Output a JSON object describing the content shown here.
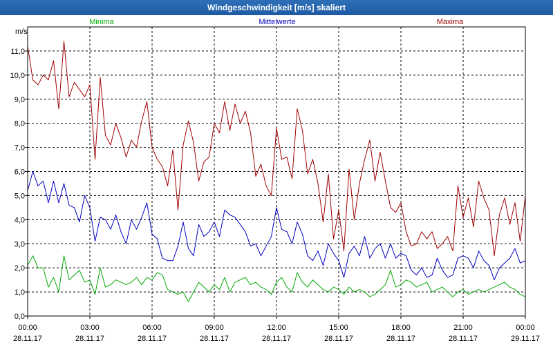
{
  "window": {
    "title": "Windgeschwindigkeit [m/s] skaliert"
  },
  "chart_data": {
    "type": "line",
    "title": "Windgeschwindigkeit [m/s] skaliert",
    "ylabel": "m/s",
    "ylim": [
      0,
      12
    ],
    "grid": true,
    "yticks": [
      {
        "value": 0,
        "label": "0,0"
      },
      {
        "value": 1,
        "label": "1,0"
      },
      {
        "value": 2,
        "label": "2,0"
      },
      {
        "value": 3,
        "label": "3,0"
      },
      {
        "value": 4,
        "label": "4,0"
      },
      {
        "value": 5,
        "label": "5,0"
      },
      {
        "value": 6,
        "label": "6,0"
      },
      {
        "value": 7,
        "label": "7,0"
      },
      {
        "value": 8,
        "label": "8,0"
      },
      {
        "value": 9,
        "label": "9,0"
      },
      {
        "value": 10,
        "label": "10,0"
      },
      {
        "value": 11,
        "label": "11,0"
      }
    ],
    "xticks": [
      {
        "time": "00:00",
        "date": "28.11.17"
      },
      {
        "time": "03:00",
        "date": "28.11.17"
      },
      {
        "time": "06:00",
        "date": "28.11.17"
      },
      {
        "time": "09:00",
        "date": "28.11.17"
      },
      {
        "time": "12:00",
        "date": "28.11.17"
      },
      {
        "time": "15:00",
        "date": "28.11.17"
      },
      {
        "time": "18:00",
        "date": "28.11.17"
      },
      {
        "time": "21:00",
        "date": "28.11.17"
      },
      {
        "time": "00:00",
        "date": "29.11.17"
      }
    ],
    "x_hours": [
      0.0,
      0.25,
      0.5,
      0.75,
      1.0,
      1.25,
      1.5,
      1.75,
      2.0,
      2.25,
      2.5,
      2.75,
      3.0,
      3.25,
      3.5,
      3.75,
      4.0,
      4.25,
      4.5,
      4.75,
      5.0,
      5.25,
      5.5,
      5.75,
      6.0,
      6.25,
      6.5,
      6.75,
      7.0,
      7.25,
      7.5,
      7.75,
      8.0,
      8.25,
      8.5,
      8.75,
      9.0,
      9.25,
      9.5,
      9.75,
      10.0,
      10.25,
      10.5,
      10.75,
      11.0,
      11.25,
      11.5,
      11.75,
      12.0,
      12.25,
      12.5,
      12.75,
      13.0,
      13.25,
      13.5,
      13.75,
      14.0,
      14.25,
      14.5,
      14.75,
      15.0,
      15.25,
      15.5,
      15.75,
      16.0,
      16.25,
      16.5,
      16.75,
      17.0,
      17.25,
      17.5,
      17.75,
      18.0,
      18.25,
      18.5,
      18.75,
      19.0,
      19.25,
      19.5,
      19.75,
      20.0,
      20.25,
      20.5,
      20.75,
      21.0,
      21.25,
      21.5,
      21.75,
      22.0,
      22.25,
      22.5,
      22.75,
      23.0,
      23.25,
      23.5,
      23.75,
      24.0
    ],
    "series": [
      {
        "name": "Minima",
        "color": "#00a800",
        "values": [
          2.1,
          2.5,
          2.0,
          2.0,
          1.2,
          1.6,
          1.0,
          2.5,
          1.5,
          1.7,
          1.9,
          1.4,
          1.5,
          0.9,
          2.0,
          1.2,
          1.3,
          1.5,
          1.4,
          1.3,
          1.4,
          1.6,
          1.3,
          1.6,
          1.5,
          1.8,
          1.7,
          1.1,
          1.0,
          0.9,
          1.0,
          0.6,
          1.0,
          1.4,
          1.2,
          1.0,
          1.3,
          1.1,
          1.6,
          1.0,
          1.4,
          1.5,
          1.6,
          1.3,
          1.4,
          1.2,
          1.1,
          0.9,
          1.4,
          1.6,
          1.2,
          1.0,
          1.8,
          1.4,
          1.2,
          1.5,
          1.3,
          1.1,
          1.0,
          1.2,
          1.1,
          0.9,
          1.2,
          1.0,
          1.1,
          1.0,
          0.8,
          0.9,
          1.1,
          1.3,
          1.9,
          1.2,
          1.3,
          1.5,
          1.4,
          1.2,
          1.3,
          1.4,
          1.0,
          1.1,
          1.2,
          1.0,
          0.8,
          1.0,
          1.1,
          0.9,
          1.0,
          1.1,
          1.0,
          1.1,
          1.2,
          1.3,
          1.4,
          1.2,
          1.1,
          0.9,
          0.8
        ]
      },
      {
        "name": "Mittelwerte",
        "color": "#0000c0",
        "values": [
          5.2,
          6.0,
          5.4,
          5.6,
          4.7,
          5.6,
          4.7,
          5.5,
          4.6,
          4.5,
          3.9,
          5.0,
          4.5,
          3.1,
          4.1,
          4.0,
          3.6,
          4.2,
          3.5,
          3.0,
          4.0,
          3.6,
          4.1,
          4.7,
          3.4,
          3.2,
          2.4,
          2.3,
          2.3,
          2.9,
          3.9,
          2.8,
          2.5,
          3.8,
          3.3,
          3.5,
          3.9,
          3.3,
          4.4,
          4.2,
          4.1,
          3.8,
          3.5,
          2.9,
          3.0,
          2.5,
          2.9,
          3.3,
          4.5,
          3.6,
          3.5,
          3.0,
          3.9,
          3.4,
          2.5,
          2.3,
          2.7,
          2.1,
          3.0,
          2.6,
          2.3,
          1.6,
          2.6,
          2.9,
          2.5,
          3.3,
          2.4,
          2.8,
          3.0,
          2.4,
          3.0,
          2.4,
          2.6,
          2.5,
          1.9,
          1.7,
          2.0,
          1.6,
          1.7,
          2.4,
          1.9,
          1.6,
          1.7,
          2.4,
          2.5,
          2.4,
          2.0,
          2.7,
          2.3,
          2.1,
          1.5,
          2.0,
          2.2,
          2.4,
          2.8,
          2.2,
          2.3
        ]
      },
      {
        "name": "Maxima",
        "color": "#a00000",
        "values": [
          11.2,
          9.8,
          9.6,
          10.0,
          9.8,
          10.6,
          8.6,
          11.4,
          9.1,
          9.7,
          9.4,
          9.1,
          9.6,
          6.5,
          9.9,
          7.5,
          7.1,
          8.0,
          7.4,
          6.6,
          7.3,
          7.0,
          8.1,
          8.9,
          7.0,
          6.5,
          6.2,
          5.4,
          6.9,
          4.4,
          7.1,
          8.1,
          7.2,
          5.6,
          6.4,
          6.6,
          8.0,
          7.6,
          8.9,
          7.7,
          8.8,
          8.0,
          8.5,
          7.6,
          5.8,
          6.3,
          5.4,
          5.0,
          7.8,
          6.5,
          6.6,
          5.7,
          8.6,
          7.7,
          5.9,
          6.5,
          5.5,
          3.9,
          5.9,
          3.2,
          4.4,
          2.7,
          6.1,
          4.0,
          5.5,
          6.5,
          7.3,
          5.6,
          6.8,
          5.6,
          4.5,
          4.3,
          4.7,
          3.5,
          2.9,
          3.0,
          3.5,
          3.2,
          3.5,
          2.8,
          3.0,
          3.3,
          2.7,
          5.4,
          4.1,
          4.9,
          3.7,
          5.6,
          4.9,
          4.4,
          2.5,
          4.2,
          4.9,
          3.8,
          4.7,
          3.1,
          5.0
        ]
      }
    ]
  }
}
